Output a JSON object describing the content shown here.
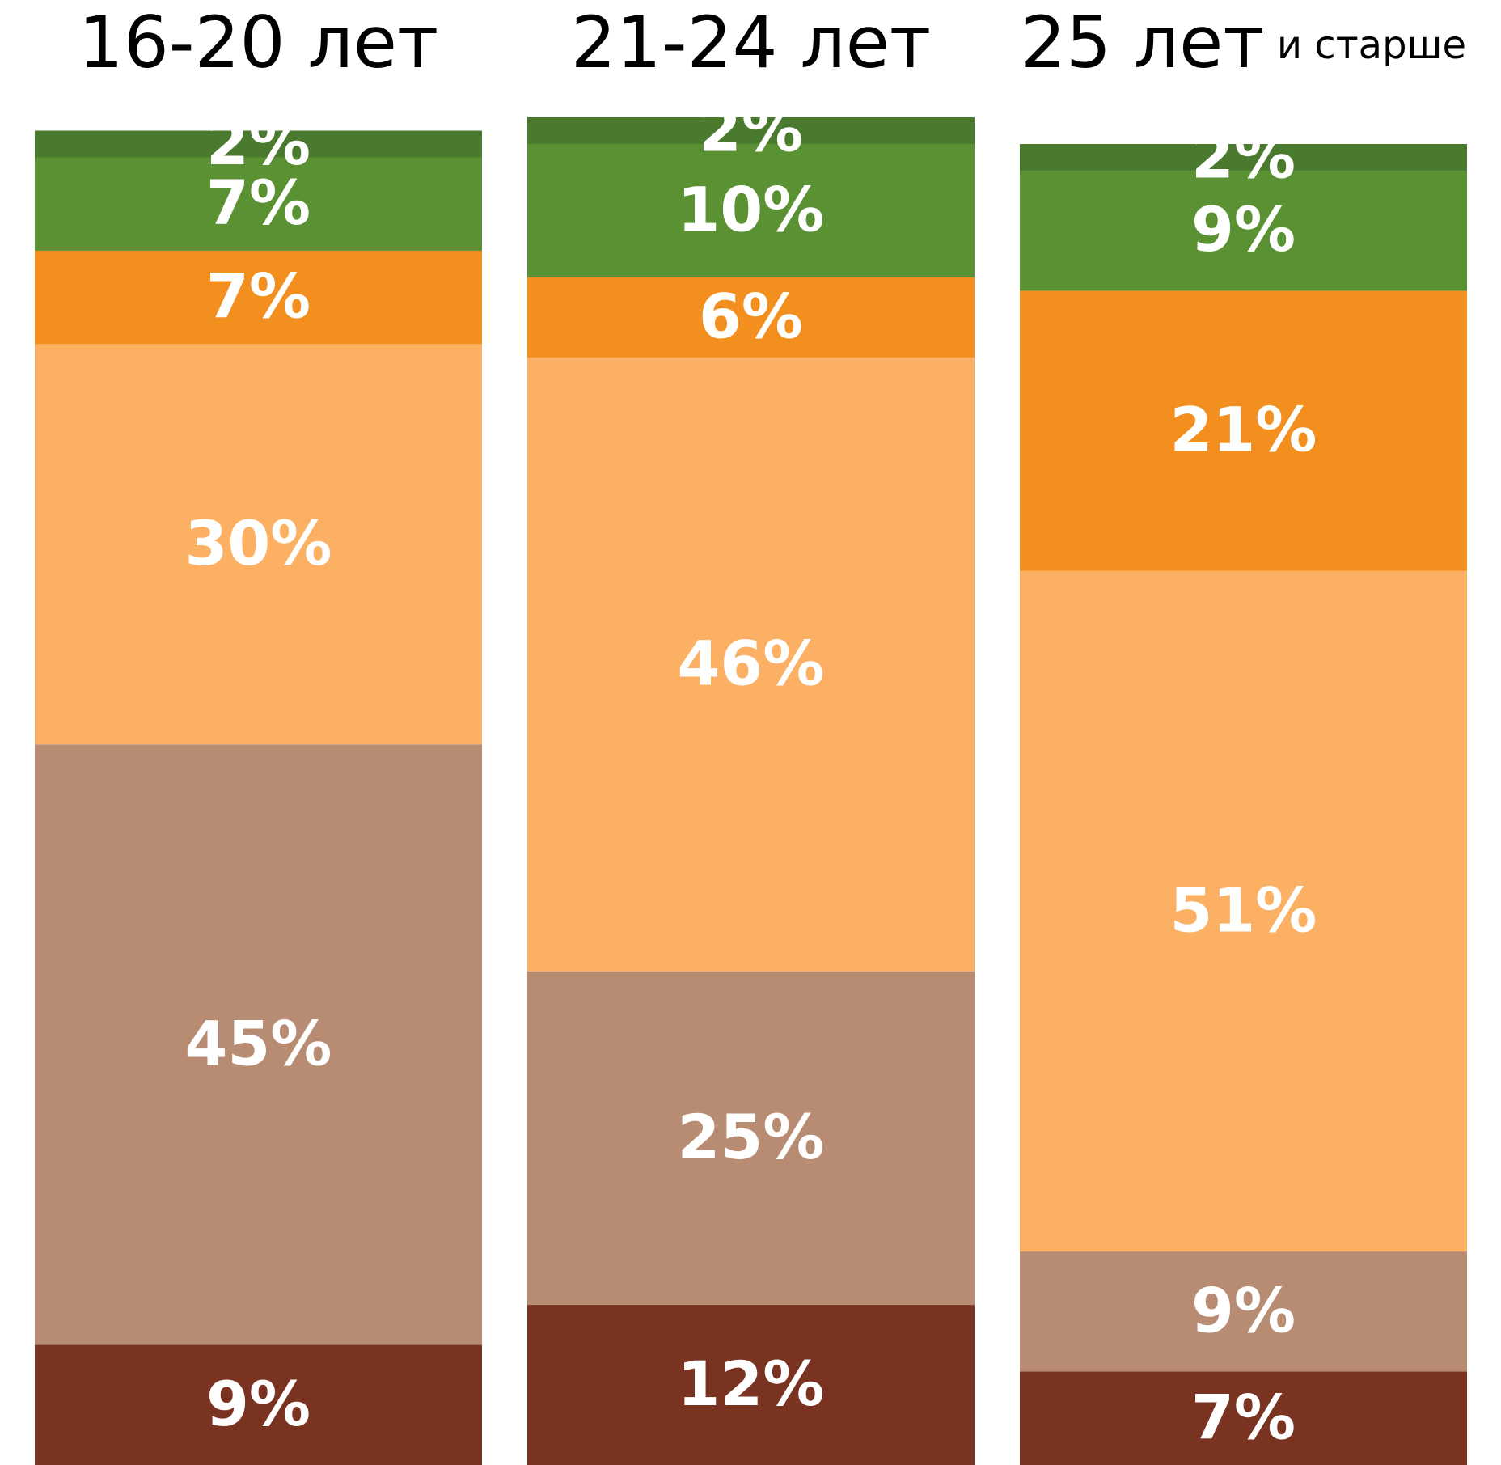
{
  "chart_data": {
    "type": "stacked_bar",
    "categories": [
      "16-20 лет",
      "21-24 лет",
      "25 лет и старше"
    ],
    "ylim": [
      0,
      101
    ],
    "series": [
      {
        "color": "#7b3321",
        "values": [
          9,
          12,
          7
        ],
        "value_labels": [
          "9%",
          "12%",
          "7%"
        ]
      },
      {
        "color": "#b88c73",
        "values": [
          45,
          25,
          9
        ],
        "value_labels": [
          "45%",
          "25%",
          "9%"
        ]
      },
      {
        "color": "#fbb063",
        "values": [
          30,
          46,
          51
        ],
        "value_labels": [
          "30%",
          "46%",
          "51%"
        ]
      },
      {
        "color": "#f28f1e",
        "values": [
          7,
          6,
          21
        ],
        "value_labels": [
          "7%",
          "6%",
          "21%"
        ]
      },
      {
        "color": "#5a9132",
        "values": [
          7,
          10,
          9
        ],
        "value_labels": [
          "7%",
          "10%",
          "9%"
        ]
      },
      {
        "color": "#4a7a2e",
        "values": [
          2,
          2,
          2
        ],
        "value_labels": [
          "2%",
          "2%",
          "2%"
        ]
      }
    ]
  }
}
